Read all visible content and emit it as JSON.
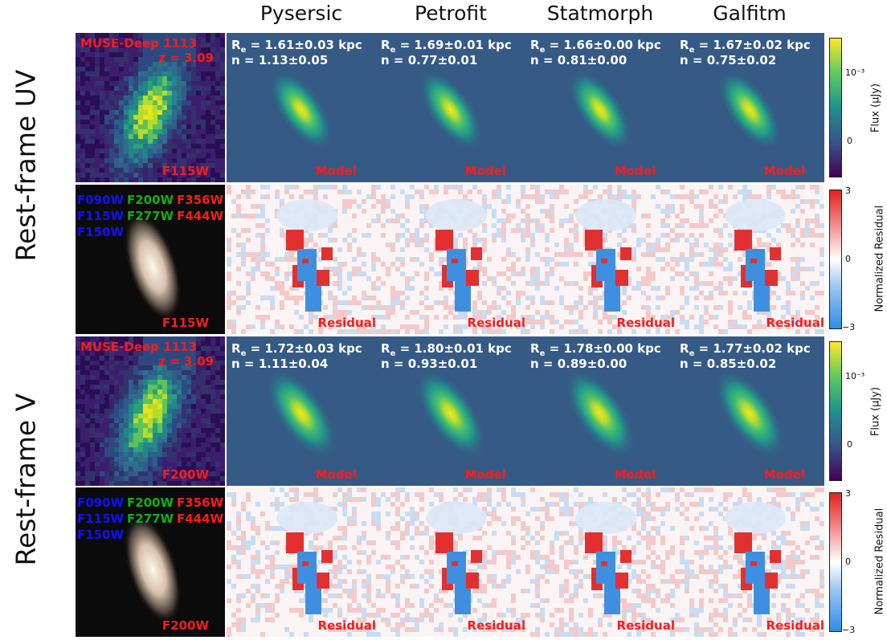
{
  "columns": [
    "Pysersic",
    "Petrofit",
    "Statmorph",
    "Galfitm"
  ],
  "rows": [
    "Rest-frame UV",
    "Rest-frame V"
  ],
  "object": {
    "name": "MUSE-Deep 1113",
    "redshift": "z = 3.09"
  },
  "bands": {
    "blue": [
      "F090W",
      "F115W",
      "F150W"
    ],
    "green": [
      "F200W",
      "F277W"
    ],
    "red": [
      "F356W",
      "F444W"
    ]
  },
  "filters": {
    "uv": "F115W",
    "v": "F200W"
  },
  "model_label": "Model",
  "residual_label": "Residual",
  "re_prefix": "R",
  "re_sub": "e",
  "fits": {
    "uv": [
      {
        "re": " = 1.61±0.03 kpc",
        "n": "n = 1.13±0.05"
      },
      {
        "re": " = 1.69±0.01 kpc",
        "n": "n = 0.77±0.01"
      },
      {
        "re": " = 1.66±0.00 kpc",
        "n": "n = 0.81±0.00"
      },
      {
        "re": " = 1.67±0.02 kpc",
        "n": "n = 0.75±0.02"
      }
    ],
    "v": [
      {
        "re": " = 1.72±0.03 kpc",
        "n": "n = 1.11±0.04"
      },
      {
        "re": " = 1.80±0.01 kpc",
        "n": "n = 0.93±0.01"
      },
      {
        "re": " = 1.78±0.00 kpc",
        "n": "n = 0.89±0.00"
      },
      {
        "re": " = 1.77±0.02 kpc",
        "n": "n = 0.85±0.02"
      }
    ]
  },
  "colorbars": {
    "flux": {
      "label": "Flux (μJy)",
      "tick_top": "10⁻³",
      "tick_zero": "0",
      "colormap": "viridis"
    },
    "residual": {
      "label": "Normalized Residual",
      "tick_top": "3",
      "tick_mid": "0",
      "tick_bottom": "−3",
      "colormap": "blue-white-red"
    }
  },
  "colors": {
    "label_red": "#ff1a1a",
    "model_bg": "#355a86",
    "residual_blue": "#3f8fe0",
    "residual_red": "#e23030"
  }
}
